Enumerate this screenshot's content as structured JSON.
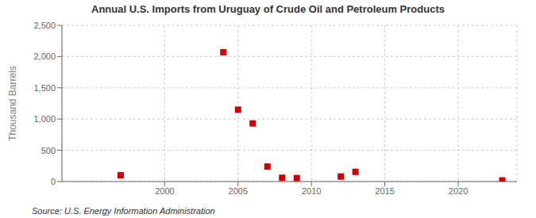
{
  "chart_data": {
    "type": "scatter",
    "title": "Annual U.S. Imports from Uruguay of Crude Oil and Petroleum Products",
    "y_label": "Thousand Barrels",
    "annotations": [
      "Source: U.S. Energy Information Administration"
    ],
    "x": [
      1997,
      2004,
      2005,
      2006,
      2007,
      2008,
      2009,
      2012,
      2013,
      2023
    ],
    "values": [
      100,
      2070,
      1150,
      930,
      240,
      60,
      55,
      80,
      155,
      18
    ],
    "color": "#cc0000",
    "marker": "square",
    "xlim": [
      1993,
      2024
    ],
    "ylim": [
      0,
      2500
    ],
    "xticks": [
      2000,
      2005,
      2010,
      2015,
      2020
    ],
    "yticks": [
      0,
      500,
      {
        "value": 1000,
        "label": "1,000"
      },
      {
        "value": 1500,
        "label": "1,500"
      },
      {
        "value": 2000,
        "label": "2,000"
      },
      {
        "value": 2500,
        "label": "2,500"
      }
    ],
    "grid": true
  }
}
